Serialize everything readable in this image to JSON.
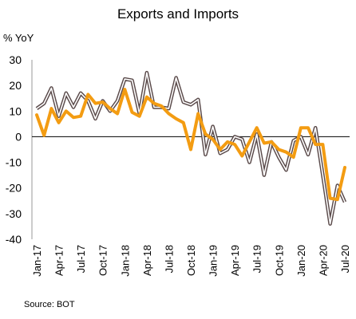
{
  "chart_data": {
    "type": "line",
    "title": "Exports and Imports",
    "ylabel": "% YoY",
    "ylim": [
      -40,
      30
    ],
    "yticks": [
      30,
      20,
      10,
      0,
      -10,
      -20,
      -30,
      -40
    ],
    "grid": false,
    "legend": "none",
    "x_tick_labels": [
      "Jan-17",
      "Apr-17",
      "Jul-17",
      "Oct-17",
      "Jan-18",
      "Apr-18",
      "Jul-18",
      "Oct-18",
      "Jan-19",
      "Apr-19",
      "Jul-19",
      "Oct-19",
      "Jan-20",
      "Apr-20",
      "Jul-20"
    ],
    "x_tick_every": 3,
    "months": [
      "Jan-17",
      "Feb-17",
      "Mar-17",
      "Apr-17",
      "May-17",
      "Jun-17",
      "Jul-17",
      "Aug-17",
      "Sep-17",
      "Oct-17",
      "Nov-17",
      "Dec-17",
      "Jan-18",
      "Feb-18",
      "Mar-18",
      "Apr-18",
      "May-18",
      "Jun-18",
      "Jul-18",
      "Aug-18",
      "Sep-18",
      "Oct-18",
      "Nov-18",
      "Dec-18",
      "Jan-19",
      "Feb-19",
      "Mar-19",
      "Apr-19",
      "May-19",
      "Jun-19",
      "Jul-19",
      "Aug-19",
      "Sep-19",
      "Oct-19",
      "Nov-19",
      "Dec-19",
      "Jan-20",
      "Feb-20",
      "Mar-20",
      "Apr-20",
      "May-20",
      "Jun-20",
      "Jul-20"
    ],
    "series": [
      {
        "color": "#F39C12",
        "style": "thick",
        "values": [
          8.5,
          0.5,
          11,
          5.5,
          10,
          7.5,
          8,
          16.5,
          13,
          13.5,
          11,
          9,
          18.5,
          9.5,
          8,
          15.5,
          13,
          12,
          9,
          7,
          5.5,
          -5,
          9,
          1,
          -1,
          -5,
          -2,
          -3,
          -7.5,
          -2,
          3.5,
          -2.5,
          -2,
          -5,
          -6,
          -8,
          3.5,
          3.5,
          -3,
          -3,
          -24,
          -24.5,
          -12
        ]
      },
      {
        "color": "#5a4a4a",
        "style": "double",
        "values": [
          11,
          13,
          19,
          8,
          17,
          11.5,
          17,
          14,
          7,
          14,
          10,
          14,
          22.5,
          22,
          9,
          25,
          11.5,
          11.5,
          11,
          23,
          13.5,
          12.5,
          14.5,
          -7,
          4,
          -6.5,
          -5,
          0,
          -1,
          -10,
          1,
          -15,
          -2,
          -8,
          -13,
          -1.5,
          0,
          -7,
          3.5,
          -15,
          -34,
          -19,
          -25.5
        ]
      }
    ]
  },
  "source_note": "Source:  BOT"
}
